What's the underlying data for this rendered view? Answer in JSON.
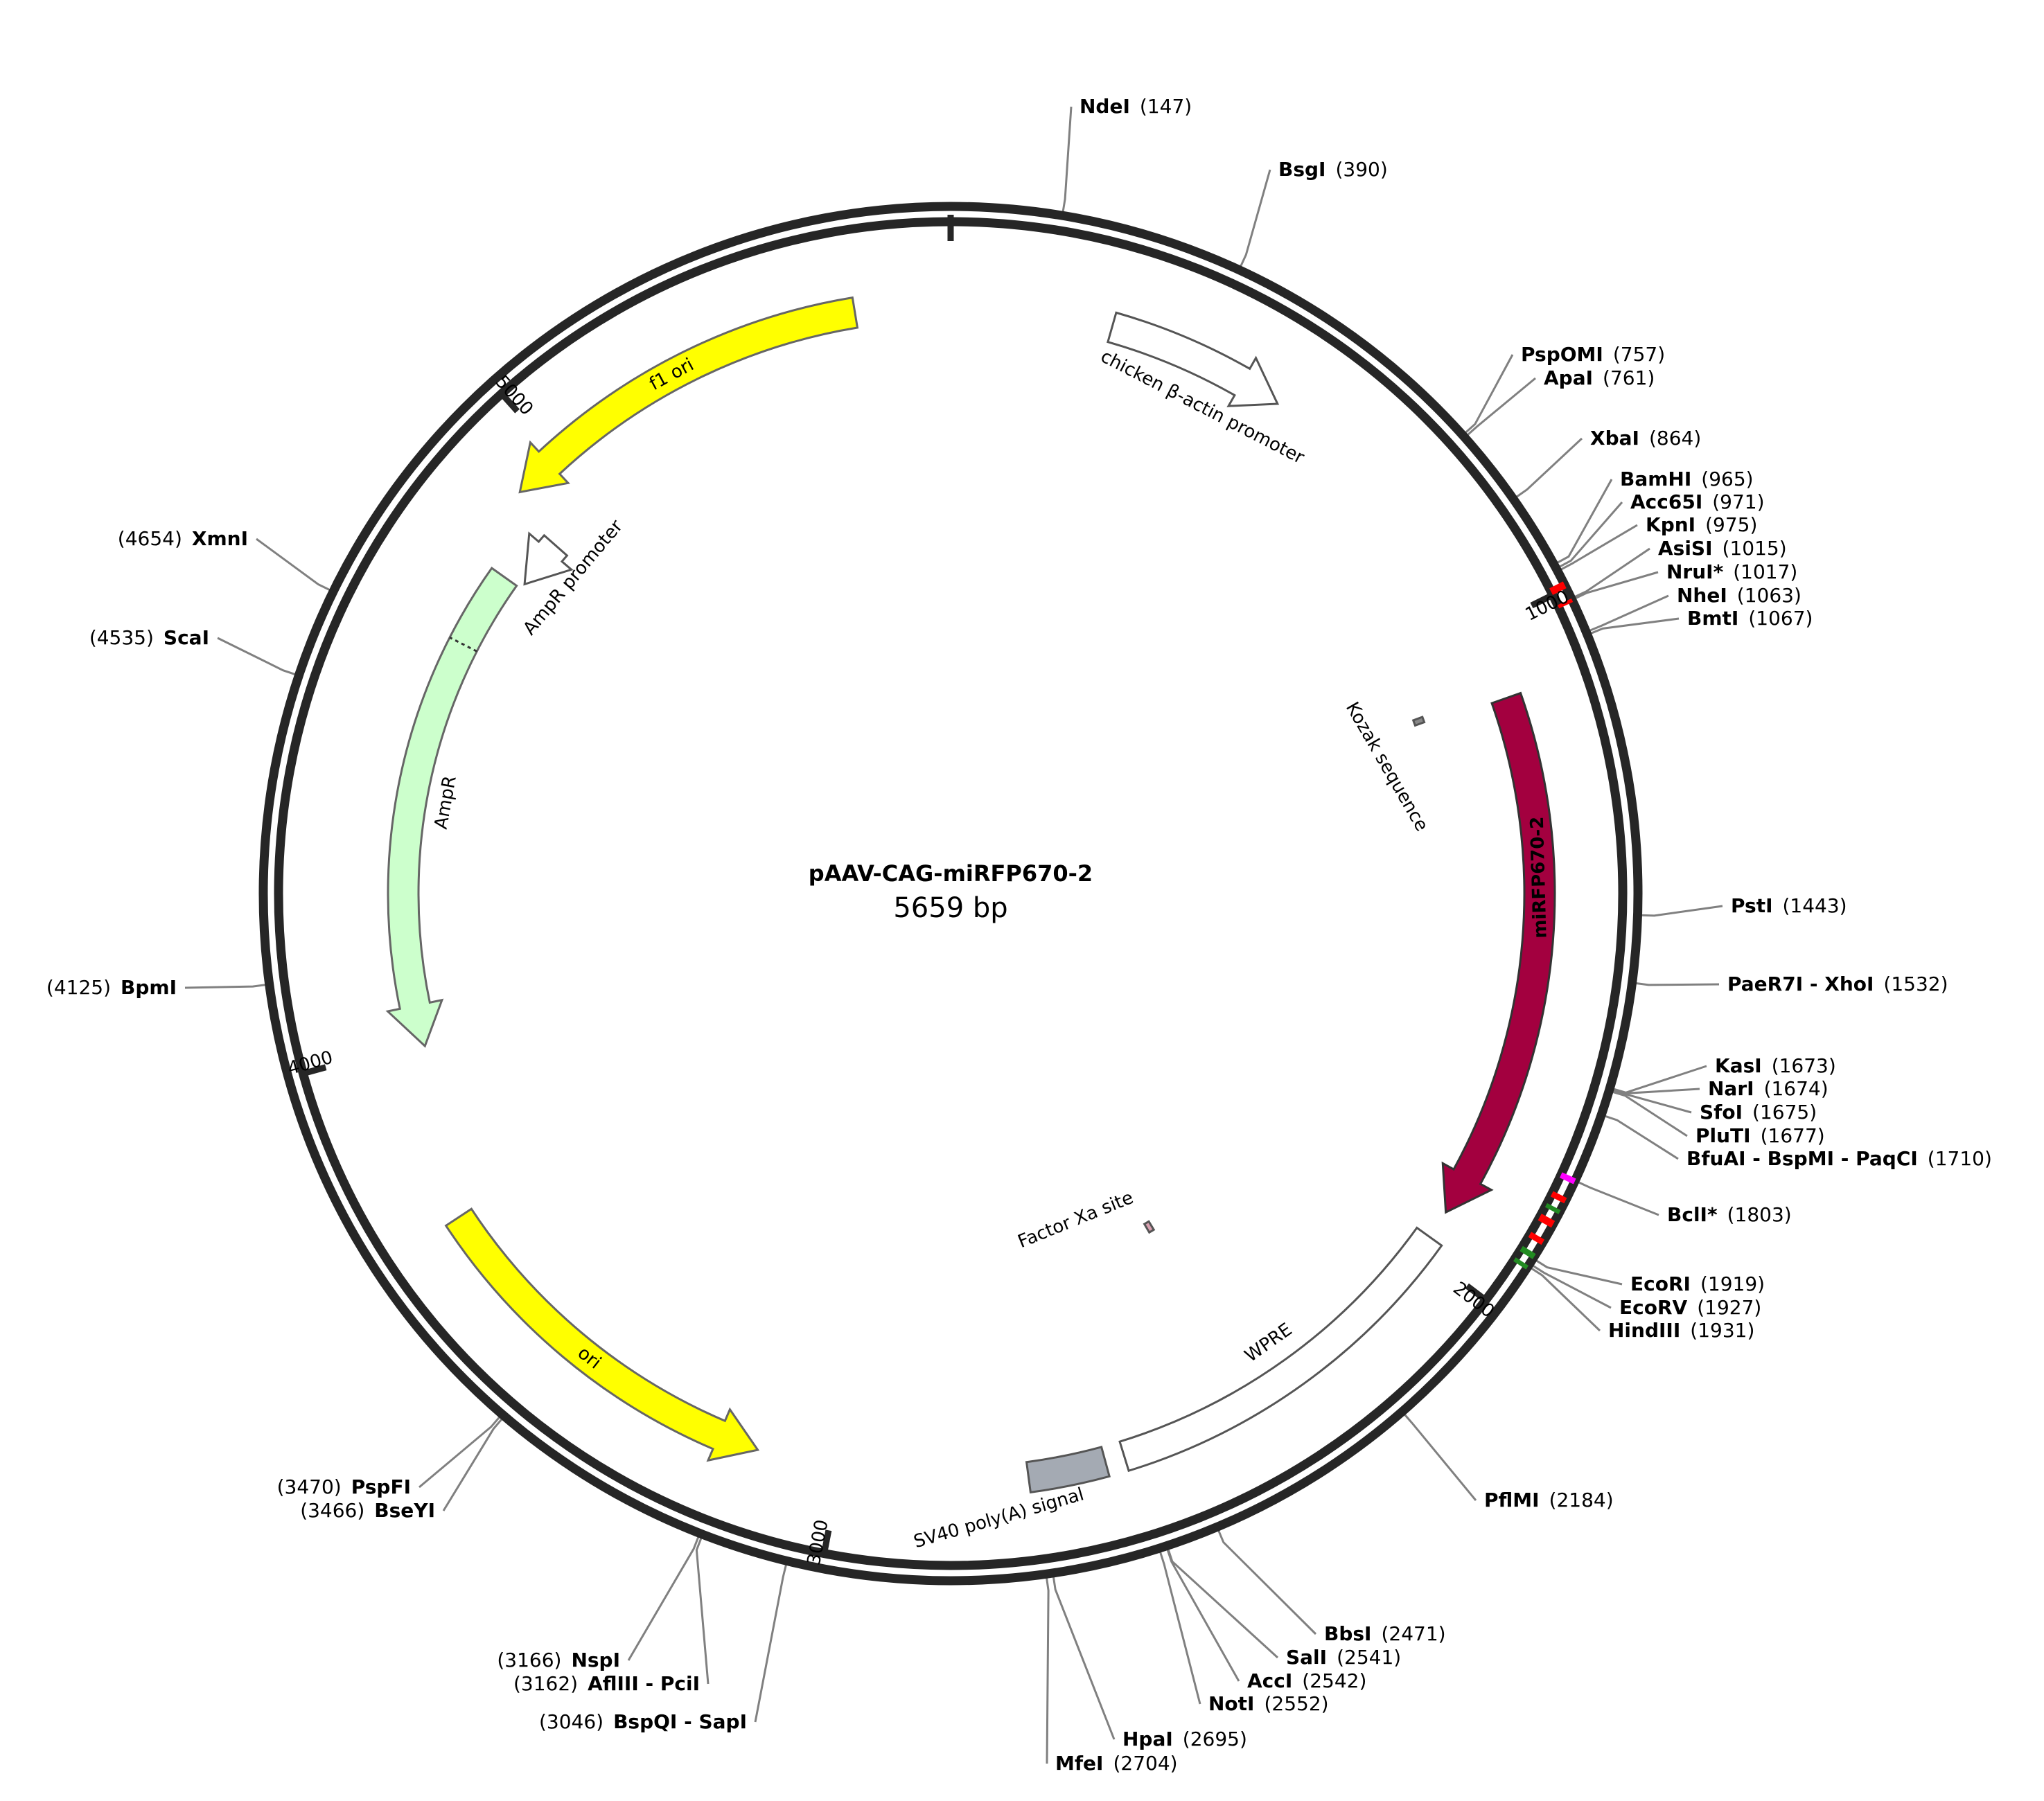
{
  "plasmid": {
    "name": "pAAV-CAG-miRFP670-2",
    "length_label": "5659 bp",
    "length": 5659
  },
  "ticks": [
    {
      "pos": 1000,
      "label": "1000"
    },
    {
      "pos": 2000,
      "label": "2000"
    },
    {
      "pos": 3000,
      "label": "3000"
    },
    {
      "pos": 4000,
      "label": "4000"
    },
    {
      "pos": 5000,
      "label": "5000"
    }
  ],
  "features": [
    {
      "id": "f1-ori",
      "label": "f1 ori",
      "start": 5512,
      "end": 4920,
      "color": "#ffff00",
      "stroke": "#666666",
      "arrow": true,
      "label_color": "#000000"
    },
    {
      "id": "chicken-actin-promoter",
      "label": "chicken β-actin promoter",
      "start": 250,
      "end": 530,
      "color": "#ffffff",
      "stroke": "#555555",
      "arrow": true,
      "label_color": "#000000"
    },
    {
      "id": "kozak-sequence",
      "label": "Kozak sequence",
      "start": 1092,
      "end": 1102,
      "color": "#888888",
      "stroke": "#555555",
      "arrow": false,
      "label_color": "#000000"
    },
    {
      "id": "mirfp670-2",
      "label": "miRFP670-2",
      "start": 1110,
      "end": 1930,
      "color": "#a3003f",
      "stroke": "#333333",
      "arrow": true,
      "label_color": "#ffffff"
    },
    {
      "id": "wpre",
      "label": "WPRE",
      "start": 1975,
      "end": 2560,
      "color": "#ffffff",
      "stroke": "#555555",
      "arrow": false,
      "label_color": "#000000"
    },
    {
      "id": "factor-xa-site",
      "label": "Factor Xa site",
      "start": 2340,
      "end": 2352,
      "color": "#d8a0b0",
      "stroke": "#555555",
      "arrow": false,
      "label_color": "#000000"
    },
    {
      "id": "sv40-polya",
      "label": "SV40 poly(A) signal",
      "start": 2590,
      "end": 2710,
      "color": "#a4aab3",
      "stroke": "#555555",
      "arrow": false,
      "label_color": "#000000"
    },
    {
      "id": "ori",
      "label": "ori",
      "start": 3720,
      "end": 3130,
      "color": "#ffff00",
      "stroke": "#666666",
      "arrow": true,
      "label_color": "#000000"
    },
    {
      "id": "ampr",
      "label": "AmpR",
      "start": 4800,
      "end": 3990,
      "color": "#ccffcc",
      "stroke": "#666666",
      "arrow": true,
      "label_color": "#000000"
    },
    {
      "id": "ampr-promoter",
      "label": "AmpR promoter",
      "start": 4895,
      "end": 4810,
      "color": "#ffffff",
      "stroke": "#555555",
      "arrow": true,
      "label_color": "#000000"
    }
  ],
  "ring_marks": [
    {
      "start": 990,
      "end": 1000,
      "color": "#ff0000"
    },
    {
      "start": 1015,
      "end": 1020,
      "color": "#ff0000"
    },
    {
      "start": 1800,
      "end": 1808,
      "color": "#ff00ff"
    },
    {
      "start": 1828,
      "end": 1836,
      "color": "#ff0000"
    },
    {
      "start": 1846,
      "end": 1852,
      "color": "#228b22"
    },
    {
      "start": 1862,
      "end": 1872,
      "color": "#ff0000"
    },
    {
      "start": 1890,
      "end": 1898,
      "color": "#ff0000"
    },
    {
      "start": 1912,
      "end": 1920,
      "color": "#228b22"
    },
    {
      "start": 1930,
      "end": 1936,
      "color": "#228b22"
    }
  ],
  "sites": [
    {
      "name": "NdeI",
      "pos_label": "(147)",
      "pos": 147
    },
    {
      "name": "BsgI",
      "pos_label": "(390)",
      "pos": 390
    },
    {
      "name": "PspOMI",
      "pos_label": "(757)",
      "pos": 757
    },
    {
      "name": "ApaI",
      "pos_label": "(761)",
      "pos": 761
    },
    {
      "name": "XbaI",
      "pos_label": "(864)",
      "pos": 864
    },
    {
      "name": "BamHI",
      "pos_label": "(965)",
      "pos": 965
    },
    {
      "name": "Acc65I",
      "pos_label": "(971)",
      "pos": 971
    },
    {
      "name": "KpnI",
      "pos_label": "(975)",
      "pos": 975
    },
    {
      "name": "AsiSI",
      "pos_label": "(1015)",
      "pos": 1015
    },
    {
      "name": "NruI*",
      "pos_label": "(1017)",
      "pos": 1017
    },
    {
      "name": "NheI",
      "pos_label": "(1063)",
      "pos": 1063
    },
    {
      "name": "BmtI",
      "pos_label": "(1067)",
      "pos": 1067
    },
    {
      "name": "PstI",
      "pos_label": "(1443)",
      "pos": 1443
    },
    {
      "name": "PaeR7I - XhoI",
      "pos_label": "(1532)",
      "pos": 1532
    },
    {
      "name": "KasI",
      "pos_label": "(1673)",
      "pos": 1673
    },
    {
      "name": "NarI",
      "pos_label": "(1674)",
      "pos": 1674
    },
    {
      "name": "SfoI",
      "pos_label": "(1675)",
      "pos": 1675
    },
    {
      "name": "PluTI",
      "pos_label": "(1677)",
      "pos": 1677
    },
    {
      "name": "BfuAI - BspMI - PaqCI",
      "pos_label": "(1710)",
      "pos": 1710
    },
    {
      "name": "BclI*",
      "pos_label": "(1803)",
      "pos": 1803
    },
    {
      "name": "EcoRI",
      "pos_label": "(1919)",
      "pos": 1919
    },
    {
      "name": "EcoRV",
      "pos_label": "(1927)",
      "pos": 1927
    },
    {
      "name": "HindIII",
      "pos_label": "(1931)",
      "pos": 1931
    },
    {
      "name": "PflMI",
      "pos_label": "(2184)",
      "pos": 2184
    },
    {
      "name": "BbsI",
      "pos_label": "(2471)",
      "pos": 2471
    },
    {
      "name": "SalI",
      "pos_label": "(2541)",
      "pos": 2541
    },
    {
      "name": "AccI",
      "pos_label": "(2542)",
      "pos": 2542
    },
    {
      "name": "NotI",
      "pos_label": "(2552)",
      "pos": 2552
    },
    {
      "name": "HpaI",
      "pos_label": "(2695)",
      "pos": 2695
    },
    {
      "name": "MfeI",
      "pos_label": "(2704)",
      "pos": 2704
    },
    {
      "name": "BspQI - SapI",
      "pos_label": "(3046)",
      "pos": 3046
    },
    {
      "name": "AflIII - PciI",
      "pos_label": "(3162)",
      "pos": 3162
    },
    {
      "name": "NspI",
      "pos_label": "(3166)",
      "pos": 3166
    },
    {
      "name": "BseYI",
      "pos_label": "(3466)",
      "pos": 3466
    },
    {
      "name": "PspFI",
      "pos_label": "(3470)",
      "pos": 3470
    },
    {
      "name": "BpmI",
      "pos_label": "(4125)",
      "pos": 4125
    },
    {
      "name": "ScaI",
      "pos_label": "(4535)",
      "pos": 4535
    },
    {
      "name": "XmnI",
      "pos_label": "(4654)",
      "pos": 4654
    }
  ]
}
